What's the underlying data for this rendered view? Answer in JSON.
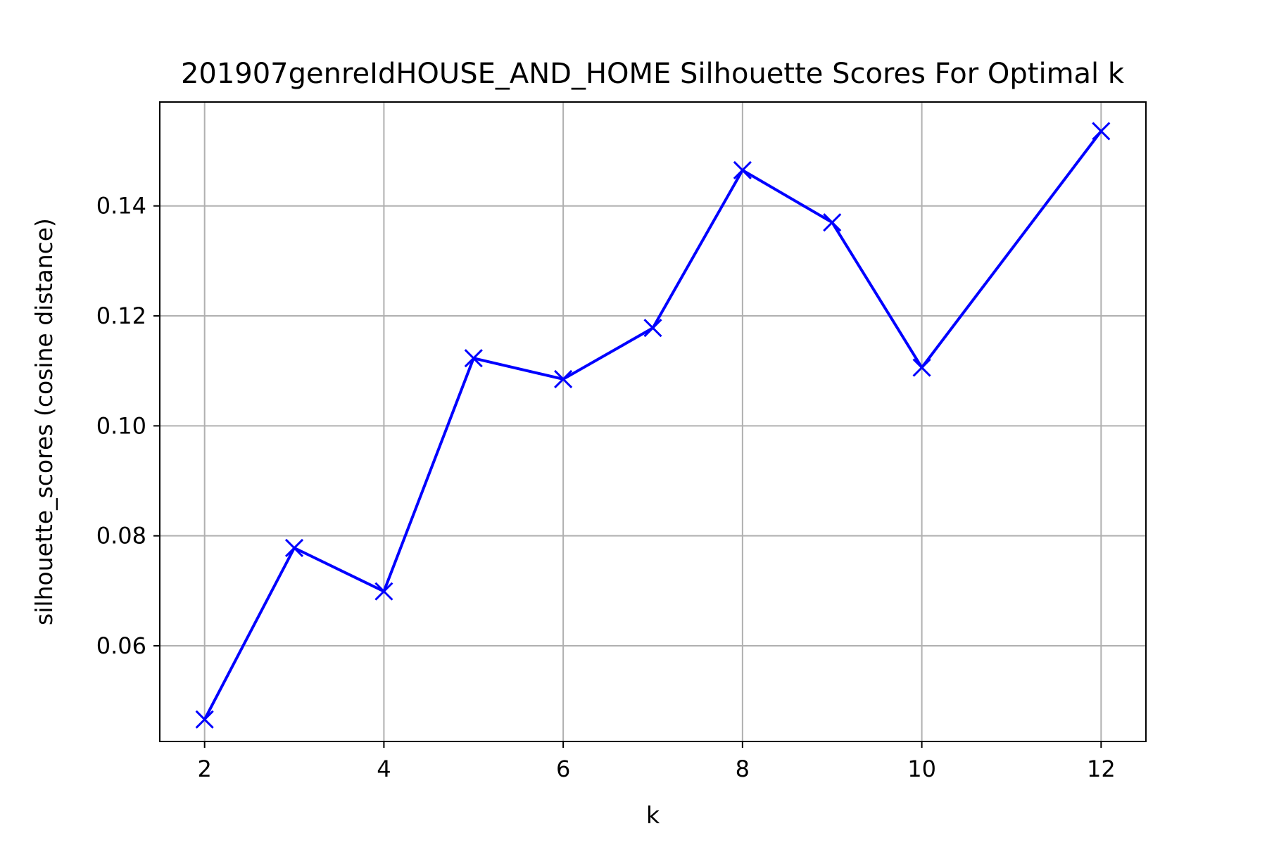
{
  "chart_data": {
    "type": "line",
    "title": "201907genreIdHOUSE_AND_HOME Silhouette Scores For Optimal k",
    "xlabel": "k",
    "ylabel": "silhouette_scores (cosine distance)",
    "x": [
      2,
      3,
      4,
      5,
      6,
      7,
      8,
      9,
      10,
      12
    ],
    "series": [
      {
        "values": [
          0.0466,
          0.0778,
          0.0699,
          0.1123,
          0.1085,
          0.1178,
          0.1465,
          0.137,
          0.1106,
          0.1536
        ],
        "color": "#0000ff",
        "marker": "x"
      }
    ],
    "xlim": [
      1.5,
      12.5
    ],
    "ylim": [
      0.0426,
      0.1589
    ],
    "xticks": [
      2,
      4,
      6,
      8,
      10,
      12
    ],
    "yticks": [
      0.06,
      0.08,
      0.1,
      0.12,
      0.14
    ],
    "ytick_labels": [
      "0.06",
      "0.08",
      "0.10",
      "0.12",
      "0.14"
    ],
    "grid": true,
    "grid_color": "#b0b0b0",
    "axes_color": "#000000",
    "legend": false
  }
}
